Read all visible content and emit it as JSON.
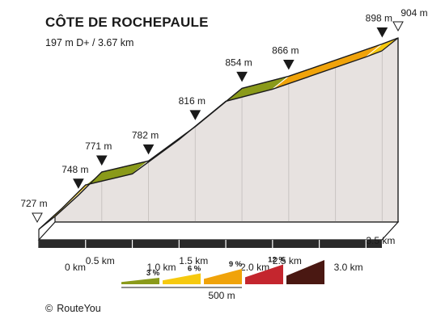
{
  "header": {
    "title": "CÔTE DE ROCHEPAULE",
    "subtitle": "197 m D+ / 3.67 km"
  },
  "footer": {
    "copyright_symbol": "©",
    "brand": "RouteYou"
  },
  "chart_data": {
    "type": "area",
    "title": "CÔTE DE ROCHEPAULE",
    "subtitle": "197 m D+ / 3.67 km",
    "xlim": [
      0,
      3.67
    ],
    "ylim": [
      727,
      904
    ],
    "profile_points": [
      {
        "x": 0.0,
        "y": 727
      },
      {
        "x": 0.25,
        "y": 748
      },
      {
        "x": 0.5,
        "y": 771
      },
      {
        "x": 1.0,
        "y": 782
      },
      {
        "x": 1.5,
        "y": 816
      },
      {
        "x": 2.0,
        "y": 854
      },
      {
        "x": 2.5,
        "y": 866
      },
      {
        "x": 3.5,
        "y": 898
      },
      {
        "x": 3.67,
        "y": 904
      }
    ],
    "x_ticks": [
      {
        "km": 0.0,
        "label": "0 km"
      },
      {
        "km": 0.5,
        "label": "0.5 km"
      },
      {
        "km": 1.0,
        "label": "1.0 km"
      },
      {
        "km": 1.5,
        "label": "1.5 km"
      },
      {
        "km": 2.0,
        "label": "2.0 km"
      },
      {
        "km": 2.5,
        "label": "2.5 km"
      },
      {
        "km": 3.0,
        "label": "3.0 km"
      },
      {
        "km": 3.5,
        "label": "3.5 km"
      }
    ],
    "segments": [
      {
        "from": 0.0,
        "to": 0.5,
        "class": "6 %"
      },
      {
        "from": 0.5,
        "to": 1.0,
        "class": "3 %"
      },
      {
        "from": 1.0,
        "to": 1.5,
        "class": "9 %"
      },
      {
        "from": 1.5,
        "to": 2.0,
        "class": "9 %"
      },
      {
        "from": 2.0,
        "to": 2.5,
        "class": "3 %"
      },
      {
        "from": 2.5,
        "to": 3.5,
        "class": "9 %"
      },
      {
        "from": 3.5,
        "to": 3.67,
        "class": "6 %"
      }
    ],
    "markers": [
      {
        "km": 0.0,
        "label": "727 m",
        "style": "open"
      },
      {
        "km": 0.25,
        "label": "748 m",
        "style": "filled"
      },
      {
        "km": 0.5,
        "label": "771 m",
        "style": "filled"
      },
      {
        "km": 1.0,
        "label": "782 m",
        "style": "filled"
      },
      {
        "km": 1.5,
        "label": "816 m",
        "style": "filled"
      },
      {
        "km": 2.0,
        "label": "854 m",
        "style": "filled"
      },
      {
        "km": 2.5,
        "label": "866 m",
        "style": "filled"
      },
      {
        "km": 3.5,
        "label": "898 m",
        "style": "filled"
      },
      {
        "km": 3.67,
        "label": "904 m",
        "style": "open"
      }
    ],
    "legend": {
      "items": [
        {
          "label": "3 %",
          "color": "#8a9a1a"
        },
        {
          "label": "6 %",
          "color": "#f6c90f"
        },
        {
          "label": "9 %",
          "color": "#f0a30a"
        },
        {
          "label": "12 %",
          "color": "#c4262e"
        },
        {
          "label": "",
          "color": "#4a1812"
        }
      ],
      "scale_label": "500 m"
    },
    "colors": {
      "wall": "#e7e2e0",
      "wall_edge": "#c9c4c2",
      "base": "#2a2a2a",
      "outline": "#1a1a1a"
    }
  }
}
